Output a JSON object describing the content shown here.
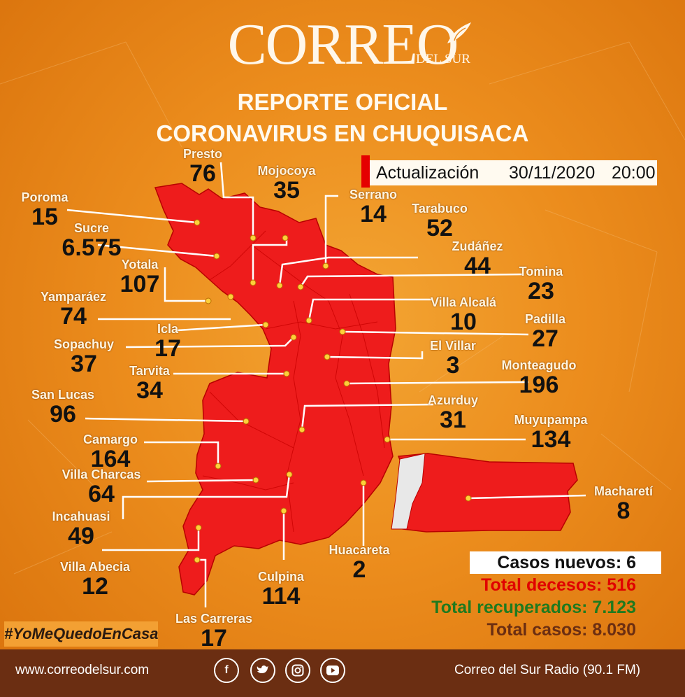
{
  "brand": {
    "name": "CORREO",
    "sub": "DEL SUR"
  },
  "title": {
    "line1": "REPORTE OFICIAL",
    "line2": "CORONAVIRUS EN CHUQUISACA"
  },
  "update": {
    "label": "Actualización",
    "date": "30/11/2020",
    "time": "20:00"
  },
  "places": [
    {
      "name": "Presto",
      "count": "76"
    },
    {
      "name": "Mojocoya",
      "count": "35"
    },
    {
      "name": "Serrano",
      "count": "14"
    },
    {
      "name": "Poroma",
      "count": "15"
    },
    {
      "name": "Tarabuco",
      "count": "52"
    },
    {
      "name": "Sucre",
      "count": "6.575"
    },
    {
      "name": "Zudáñez",
      "count": "44"
    },
    {
      "name": "Yotala",
      "count": "107"
    },
    {
      "name": "Tomina",
      "count": "23"
    },
    {
      "name": "Yamparáez",
      "count": "74"
    },
    {
      "name": "Villa Alcalá",
      "count": "10"
    },
    {
      "name": "Icla",
      "count": "17"
    },
    {
      "name": "Padilla",
      "count": "27"
    },
    {
      "name": "Sopachuy",
      "count": "37"
    },
    {
      "name": "El Villar",
      "count": "3"
    },
    {
      "name": "Tarvita",
      "count": "34"
    },
    {
      "name": "Monteagudo",
      "count": "196"
    },
    {
      "name": "San Lucas",
      "count": "96"
    },
    {
      "name": "Azurduy",
      "count": "31"
    },
    {
      "name": "Muyupampa",
      "count": "134"
    },
    {
      "name": "Camargo",
      "count": "164"
    },
    {
      "name": "Villa Charcas",
      "count": "64"
    },
    {
      "name": "Macharetí",
      "count": "8"
    },
    {
      "name": "Incahuasi",
      "count": "49"
    },
    {
      "name": "Huacareta",
      "count": "2"
    },
    {
      "name": "Villa Abecia",
      "count": "12"
    },
    {
      "name": "Culpina",
      "count": "114"
    },
    {
      "name": "Las Carreras",
      "count": "17"
    }
  ],
  "stats": {
    "new_cases": "Casos nuevos: 6",
    "deaths": "Total decesos: 516",
    "recovered": "Total recuperados: 7.123",
    "total": "Total casos: 8.030"
  },
  "hashtag": "#YoMeQuedoEnCasa",
  "footer": {
    "website": "www.correodelsur.com",
    "radio": "Correo del Sur Radio (90.1 FM)",
    "social_icons": [
      "facebook-icon",
      "twitter-icon",
      "instagram-icon",
      "youtube-icon"
    ]
  },
  "colors": {
    "map_fill": "#ee1c1c",
    "deaths": "#e00000",
    "recovered": "#1f7a1f",
    "total": "#6b2e12"
  }
}
